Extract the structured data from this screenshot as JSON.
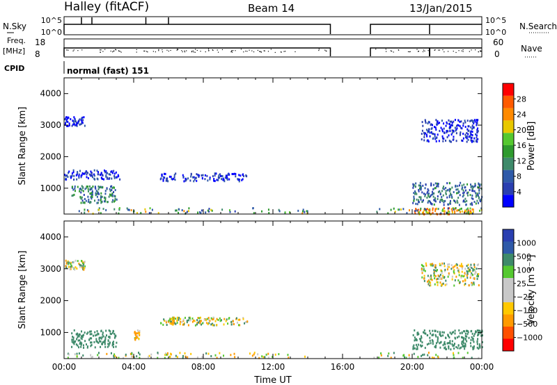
{
  "header": {
    "station": "Halley (fitACF)",
    "beam": "Beam 14",
    "date": "13/Jan/2015"
  },
  "nsky_panel": {
    "left_label": "N.Sky",
    "left_ticks": [
      "10^5",
      "10^0"
    ],
    "right_label": "N.Search",
    "right_ticks": [
      "10^5",
      "10^0"
    ]
  },
  "freq_panel": {
    "left_label_1": "Freq.",
    "left_label_2": "[MHz]",
    "left_ticks": [
      "18",
      "8"
    ],
    "right_label": "Nave",
    "right_ticks": [
      "60",
      "0"
    ]
  },
  "cpid_panel": {
    "label": "CPID",
    "mode_text": "normal (fast) 151"
  },
  "colors": {
    "power_scale": [
      "#0000ff",
      "#2a3fb0",
      "#2f5aa8",
      "#3e8a6a",
      "#2e9a2e",
      "#55c830",
      "#e8c800",
      "#ff8a00",
      "#ff5a00",
      "#ff0000"
    ],
    "velocity_scale": [
      "#ff0000",
      "#ff5000",
      "#ff9a00",
      "#ffc800",
      "#c8c8c8",
      "#c8c8c8",
      "#55c830",
      "#3e8a6a",
      "#2f5aa8",
      "#2a3fb0"
    ]
  },
  "chart_data": [
    {
      "type": "heatmap",
      "name": "power",
      "xlabel": "",
      "ylabel": "Slant Range [km]",
      "xlim": [
        "00:00",
        "24:00"
      ],
      "ylim": [
        180,
        4500
      ],
      "yticks": [
        1000,
        2000,
        3000,
        4000
      ],
      "colorbar": {
        "label": "Power [dB]",
        "ticks": [
          "28",
          "24",
          "20",
          "16",
          "12",
          "8",
          "4"
        ],
        "range": [
          0,
          30
        ]
      },
      "data_gap_ut_hours": [
        15.3,
        17.6
      ],
      "echo_regions": [
        {
          "ut_hours": [
            0.0,
            1.2
          ],
          "range_km": [
            3000,
            3300
          ],
          "typical_power_db": 3
        },
        {
          "ut_hours": [
            0.0,
            3.2
          ],
          "range_km": [
            1300,
            1600
          ],
          "typical_power_db": 4
        },
        {
          "ut_hours": [
            0.4,
            3.0
          ],
          "range_km": [
            550,
            1100
          ],
          "typical_power_db": 10
        },
        {
          "ut_hours": [
            5.5,
            10.5
          ],
          "range_km": [
            1250,
            1500
          ],
          "typical_power_db": 4
        },
        {
          "ut_hours": [
            20.0,
            24.0
          ],
          "range_km": [
            500,
            1200
          ],
          "typical_power_db": 8
        },
        {
          "ut_hours": [
            20.5,
            23.8
          ],
          "range_km": [
            2500,
            3200
          ],
          "typical_power_db": 3
        },
        {
          "ut_hours": [
            20.0,
            23.5
          ],
          "range_km": [
            200,
            400
          ],
          "typical_power_db": 22
        }
      ]
    },
    {
      "type": "heatmap",
      "name": "velocity",
      "xlabel": "Time UT",
      "ylabel": "Slant Range [km]",
      "xticks": [
        "00:00",
        "04:00",
        "08:00",
        "12:00",
        "16:00",
        "20:00",
        "00:00"
      ],
      "xlim": [
        "00:00",
        "24:00"
      ],
      "ylim": [
        180,
        4500
      ],
      "yticks": [
        1000,
        2000,
        3000,
        4000
      ],
      "colorbar": {
        "label": "Velocity [m s⁻¹]",
        "ticks": [
          "1000",
          "500",
          "100",
          "25",
          "−25",
          "−100",
          "−500",
          "−1000"
        ]
      },
      "data_gap_ut_hours": [
        15.3,
        17.6
      ],
      "echo_regions": [
        {
          "ut_hours": [
            0.0,
            1.2
          ],
          "range_km": [
            3000,
            3300
          ],
          "typical_velocity_ms": 0
        },
        {
          "ut_hours": [
            0.4,
            3.0
          ],
          "range_km": [
            550,
            1100
          ],
          "typical_velocity_ms": 300
        },
        {
          "ut_hours": [
            4.0,
            4.3
          ],
          "range_km": [
            800,
            1100
          ],
          "typical_velocity_ms": -100
        },
        {
          "ut_hours": [
            6.0,
            6.3
          ],
          "range_km": [
            1300,
            1500
          ],
          "typical_velocity_ms": -100
        },
        {
          "ut_hours": [
            5.5,
            10.5
          ],
          "range_km": [
            1250,
            1500
          ],
          "typical_velocity_ms": 0
        },
        {
          "ut_hours": [
            20.0,
            24.0
          ],
          "range_km": [
            500,
            1100
          ],
          "typical_velocity_ms": 300
        },
        {
          "ut_hours": [
            20.5,
            23.8
          ],
          "range_km": [
            2500,
            3200
          ],
          "typical_velocity_ms": 0
        }
      ]
    }
  ]
}
